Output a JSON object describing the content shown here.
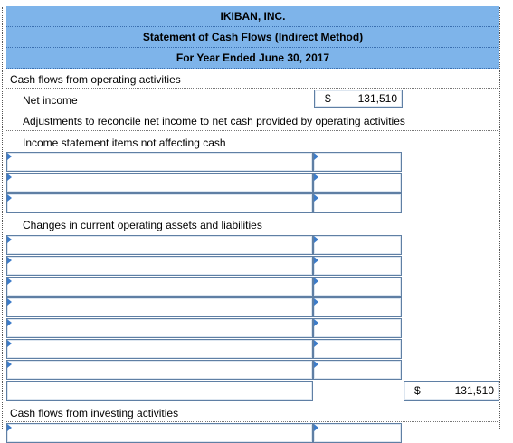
{
  "header": {
    "company": "IKIBAN, INC.",
    "statement": "Statement of Cash Flows (Indirect Method)",
    "period": "For Year Ended June 30, 2017"
  },
  "rows": {
    "operating_heading": "Cash flows from operating activities",
    "net_income_label": "Net income",
    "net_income_currency": "$",
    "net_income_value": "131,510",
    "adjustments_label": "Adjustments to reconcile net income to net cash provided by operating activities",
    "income_items_label": "Income statement items not affecting cash",
    "changes_label": "Changes in current operating assets and liabilities",
    "total_currency": "$",
    "total_value": "131,510",
    "investing_heading": "Cash flows from investing activities"
  }
}
